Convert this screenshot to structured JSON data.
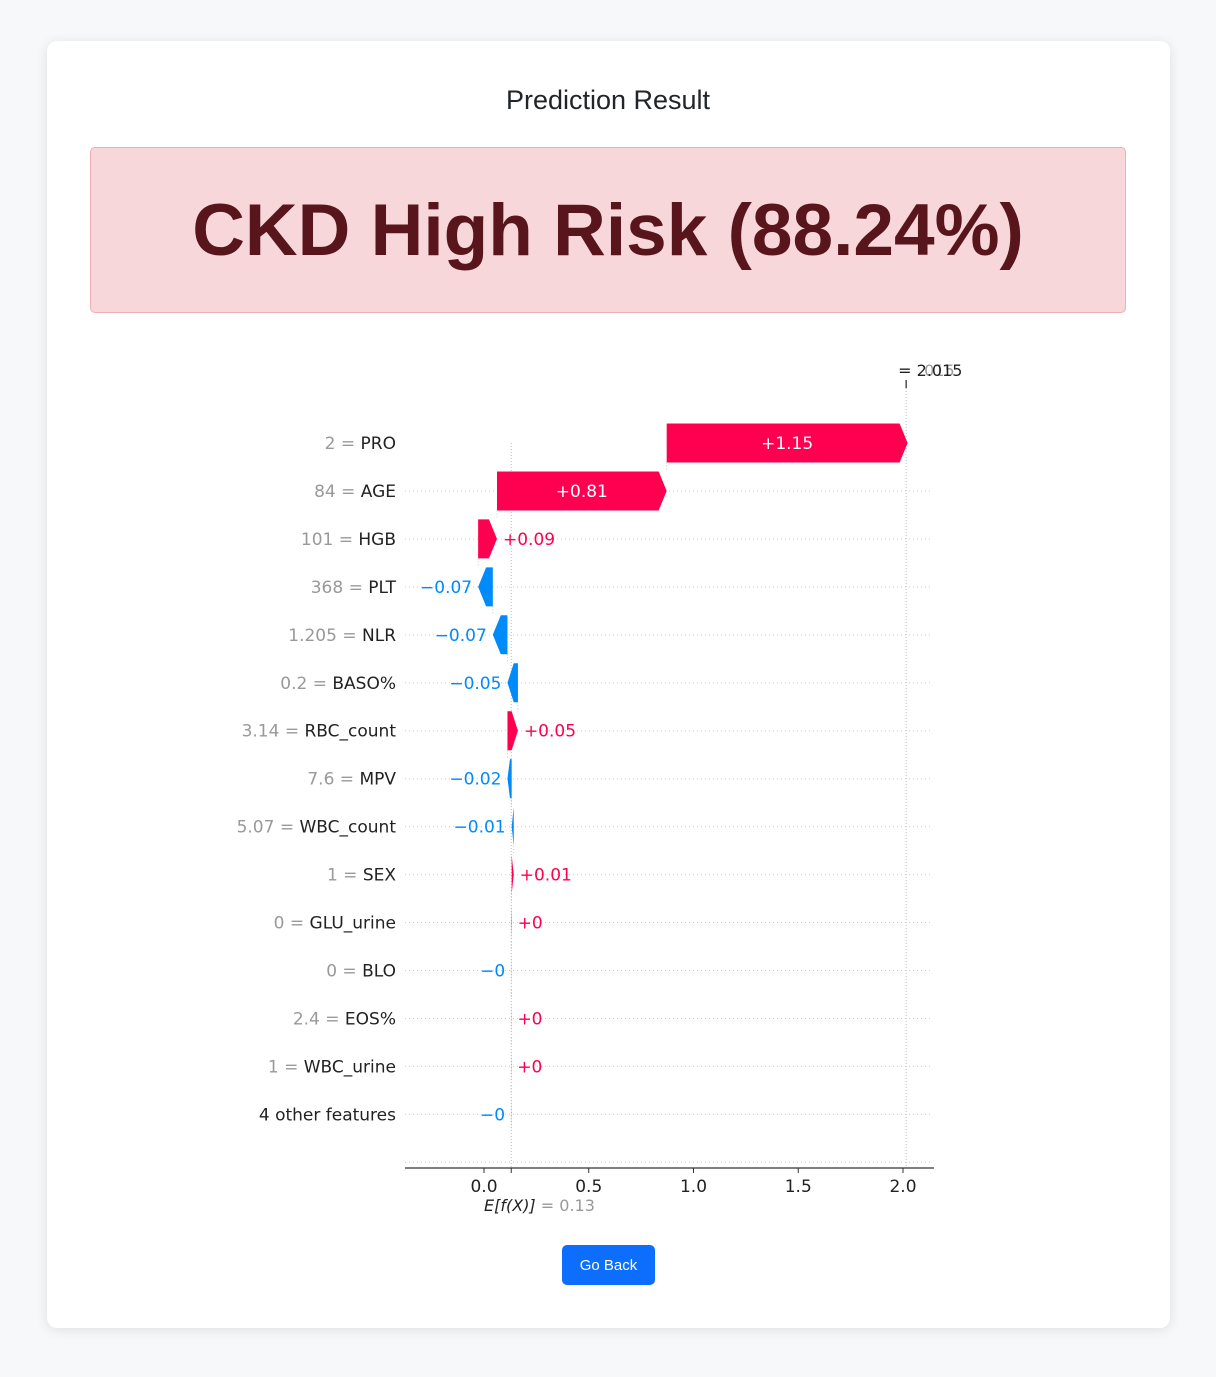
{
  "page": {
    "title": "Prediction Result",
    "result_text": "CKD High Risk (88.24%)",
    "back_button": "Go Back"
  },
  "colors": {
    "positive": "#ff0051",
    "negative": "#008bfb",
    "alert_bg": "#f8d7da",
    "alert_text": "#58151c",
    "button": "#0d6efd"
  },
  "chart_data": {
    "type": "waterfall",
    "base_value": 0.13,
    "base_label_expr": "E[f(X)]",
    "base_label_value": "= 0.13",
    "output_value": 2.015,
    "output_label_main": "= 2.015",
    "output_label_ghost": "015",
    "x_ticks": [
      0.0,
      0.5,
      1.0,
      1.5,
      2.0
    ],
    "x_tick_labels": [
      "0.0",
      "0.5",
      "1.0",
      "1.5",
      "2.0"
    ],
    "xlim": [
      -0.37,
      2.15
    ],
    "features": [
      {
        "value": "2",
        "name": "PRO",
        "shap": 1.15,
        "label": "+1.15"
      },
      {
        "value": "84",
        "name": "AGE",
        "shap": 0.81,
        "label": "+0.81"
      },
      {
        "value": "101",
        "name": "HGB",
        "shap": 0.09,
        "label": "+0.09"
      },
      {
        "value": "368",
        "name": "PLT",
        "shap": -0.07,
        "label": "−0.07"
      },
      {
        "value": "1.205",
        "name": "NLR",
        "shap": -0.07,
        "label": "−0.07"
      },
      {
        "value": "0.2",
        "name": "BASO%",
        "shap": -0.05,
        "label": "−0.05"
      },
      {
        "value": "3.14",
        "name": "RBC_count",
        "shap": 0.05,
        "label": "+0.05"
      },
      {
        "value": "7.6",
        "name": "MPV",
        "shap": -0.02,
        "label": "−0.02"
      },
      {
        "value": "5.07",
        "name": "WBC_count",
        "shap": -0.01,
        "label": "−0.01"
      },
      {
        "value": "1",
        "name": "SEX",
        "shap": 0.01,
        "label": "+0.01"
      },
      {
        "value": "0",
        "name": "GLU_urine",
        "shap": 0.002,
        "label": "+0"
      },
      {
        "value": "0",
        "name": "BLO",
        "shap": -0.001,
        "label": "−0"
      },
      {
        "value": "2.4",
        "name": "EOS%",
        "shap": 0.001,
        "label": "+0"
      },
      {
        "value": "1",
        "name": "WBC_urine",
        "shap": 0.001,
        "label": "+0"
      },
      {
        "value": "",
        "name": "4 other features",
        "shap": -0.001,
        "label": "−0"
      }
    ]
  }
}
